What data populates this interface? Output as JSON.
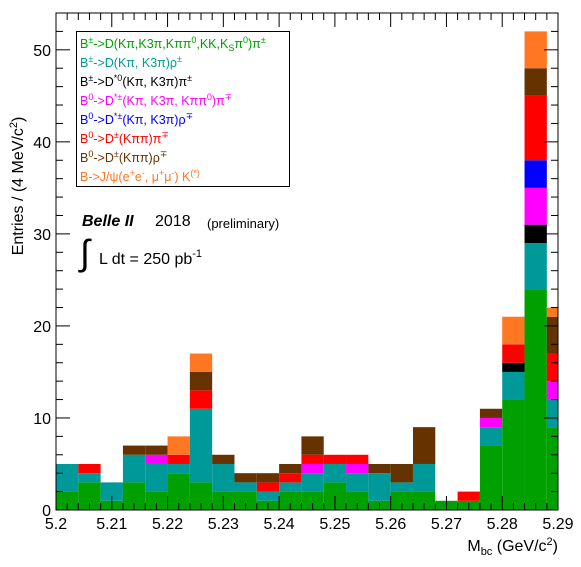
{
  "chart_data": {
    "type": "bar",
    "stacked": true,
    "title": "",
    "xlabel": "Mbc (GeV/c2)",
    "ylabel": "Entries / (4 MeV/c2)",
    "xlim": [
      5.2,
      5.29
    ],
    "ylim": [
      0,
      54
    ],
    "bin_width": 0.004,
    "x_bin_edges": [
      5.2,
      5.204,
      5.208,
      5.212,
      5.216,
      5.22,
      5.224,
      5.228,
      5.232,
      5.236,
      5.24,
      5.244,
      5.248,
      5.252,
      5.256,
      5.26,
      5.264,
      5.268,
      5.272,
      5.276,
      5.28,
      5.284,
      5.288,
      5.29
    ],
    "x_ticks": [
      "5.2",
      "5.21",
      "5.22",
      "5.23",
      "5.24",
      "5.25",
      "5.26",
      "5.27",
      "5.28",
      "5.29"
    ],
    "y_ticks": [
      "0",
      "10",
      "20",
      "30",
      "40",
      "50"
    ],
    "series": [
      {
        "name": "B±->D(Kπ,K3π,Kππ0,KK,KSπ0)π±",
        "color": "#00a000",
        "values": [
          2,
          3,
          1,
          3,
          2,
          4,
          3,
          2,
          2,
          1,
          2,
          2,
          3,
          2,
          1,
          2,
          2,
          1,
          1,
          7,
          12,
          24,
          9,
          2
        ]
      },
      {
        "name": "B±->D(Kπ, K3π)ρ±",
        "color": "#009999",
        "values": [
          3,
          1,
          2,
          3,
          3,
          1,
          8,
          3,
          1,
          1,
          1,
          2,
          2,
          2,
          3,
          1,
          3,
          0,
          0,
          2,
          3,
          5,
          3,
          1
        ]
      },
      {
        "name": "B±->D*0(Kπ, K3π)π±",
        "color": "#000000",
        "values": [
          0,
          0,
          0,
          0,
          0,
          0,
          0,
          0,
          0,
          0,
          0,
          0,
          0,
          0,
          0,
          0,
          0,
          0,
          0,
          0,
          1,
          2,
          0,
          0
        ]
      },
      {
        "name": "B0->D*±(Kπ, K3π, Kππ0)π∓",
        "color": "#ff00ff",
        "values": [
          0,
          0,
          0,
          0,
          1,
          0,
          0,
          0,
          0,
          0,
          0,
          1,
          0,
          1,
          0,
          0,
          0,
          0,
          0,
          1,
          0,
          4,
          2,
          0
        ]
      },
      {
        "name": "B0->D*±(Kπ, K3π)ρ∓",
        "color": "#0000ff",
        "values": [
          0,
          0,
          0,
          0,
          0,
          0,
          0,
          0,
          0,
          0,
          0,
          0,
          0,
          0,
          0,
          0,
          0,
          0,
          0,
          0,
          0,
          3,
          0,
          0
        ]
      },
      {
        "name": "B0->D±(Kππ)π∓",
        "color": "#ff0000",
        "values": [
          0,
          1,
          0,
          0,
          0,
          1,
          2,
          0,
          0,
          1,
          1,
          1,
          1,
          1,
          0,
          0,
          0,
          0,
          1,
          0,
          2,
          7,
          3,
          0
        ]
      },
      {
        "name": "B0->D±(Kππ)ρ∓",
        "color": "#663300",
        "values": [
          0,
          0,
          0,
          1,
          1,
          0,
          2,
          1,
          1,
          1,
          1,
          2,
          0,
          0,
          1,
          2,
          4,
          0,
          0,
          1,
          0,
          3,
          4,
          0
        ]
      },
      {
        "name": "B->J/ψ(e+e-, μ+μ-) K(*)",
        "color": "#ff7722",
        "values": [
          0,
          0,
          0,
          0,
          0,
          2,
          2,
          0,
          0,
          0,
          0,
          0,
          0,
          0,
          0,
          0,
          0,
          0,
          0,
          0,
          3,
          4,
          1,
          0
        ]
      }
    ]
  },
  "annotations": {
    "experiment": "Belle II",
    "year": "2018",
    "status": "(preliminary)",
    "integral": "∫",
    "luminosity_text": "L dt = 250 pb",
    "luminosity_exp": "-1"
  },
  "legend_text": {
    "item0": {
      "a": "B",
      "a_sup": "±",
      "b": "->D(Kπ,K3π,Kππ",
      "b_sup": "0",
      "c": ",KK,K",
      "c_sub": "S",
      "d": "π",
      "d_sup": "0",
      "e": ")π",
      "e_sup": "±"
    },
    "item1": {
      "a": "B",
      "a_sup": "±",
      "b": "->D(Kπ, K3π)ρ",
      "b_sup": "±"
    },
    "item2": {
      "a": "B",
      "a_sup": "±",
      "b": "->D",
      "b_sup": "*0",
      "c": "(Kπ, K3π)π",
      "c_sup": "±"
    },
    "item3": {
      "a": "B",
      "a_sup": "0",
      "b": "->D",
      "b_sup": "*±",
      "c": "(Kπ, K3π, Kππ",
      "c_sup": "0",
      "d": ")π",
      "d_sup": "∓"
    },
    "item4": {
      "a": "B",
      "a_sup": "0",
      "b": "->D",
      "b_sup": "*±",
      "c": "(Kπ, K3π)ρ",
      "c_sup": "∓"
    },
    "item5": {
      "a": "B",
      "a_sup": "0",
      "b": "->D",
      "b_sup": "±",
      "c": "(Kππ)π",
      "c_sup": "∓"
    },
    "item6": {
      "a": "B",
      "a_sup": "0",
      "b": "->D",
      "b_sup": "±",
      "c": "(Kππ)ρ",
      "c_sup": "∓"
    },
    "item7": {
      "a": "B->J/ψ(e",
      "a_sup": "+",
      "b": "e",
      "b_sup": "-",
      "c": ", μ",
      "c_sup": "+",
      "d": "μ",
      "d_sup": "-",
      "e": ") K",
      "e_sup": "(*)"
    }
  },
  "axis_text": {
    "x_main": "M",
    "x_sub": "bc",
    "x_unit": " (GeV/c",
    "x_unit_sup": "2",
    "x_close": ")",
    "y_main": "Entries / (4 MeV/c",
    "y_sup": "2",
    "y_close": ")"
  }
}
